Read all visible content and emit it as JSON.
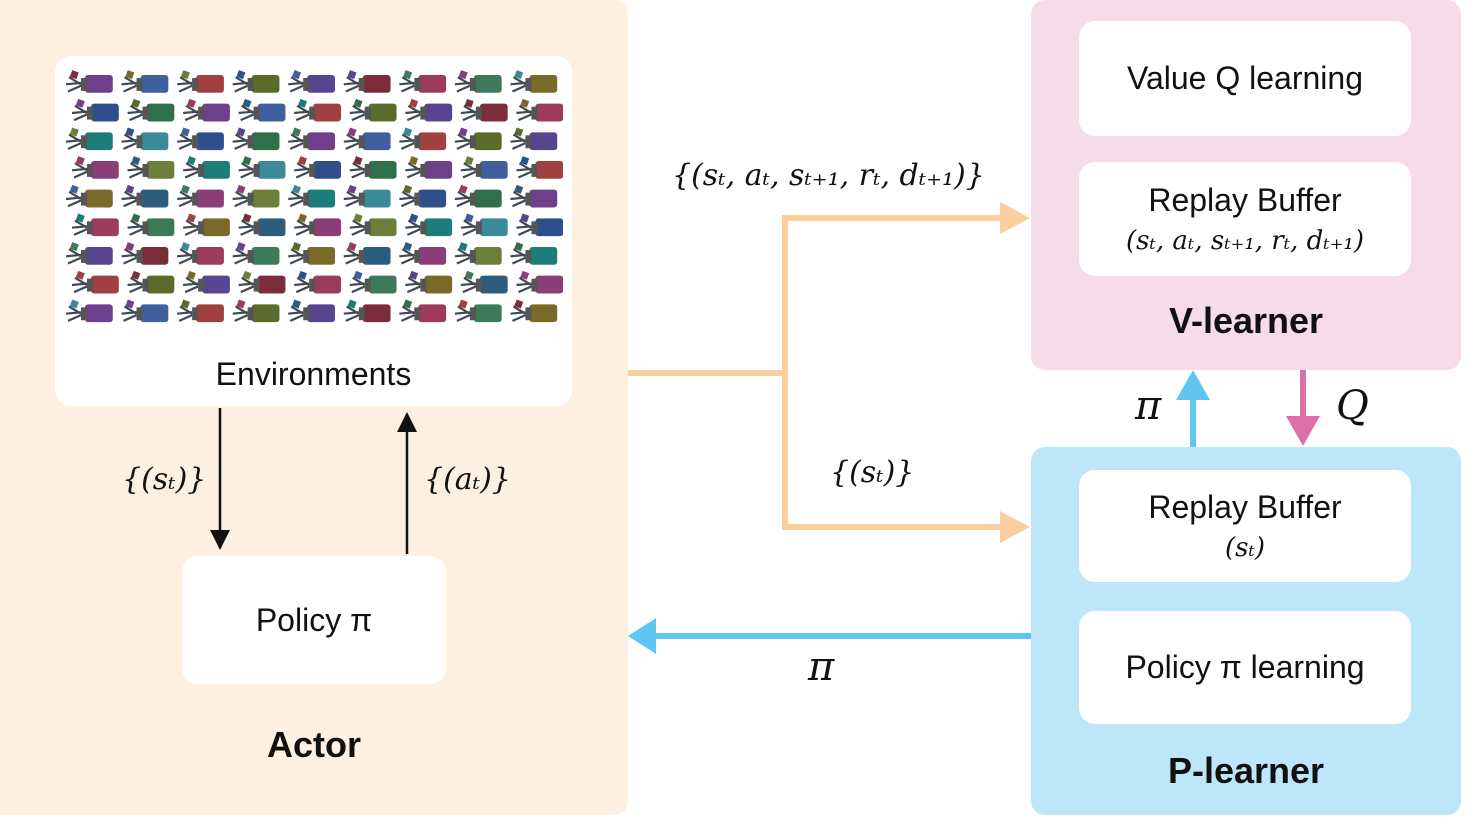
{
  "actor": {
    "title": "Actor",
    "environments_label": "Environments",
    "policy_label": "Policy π",
    "obs_label": "{(sₜ)}",
    "action_label": "{(aₜ)}"
  },
  "v_learner": {
    "title": "V-learner",
    "value_label": "Value Q learning",
    "replay_title": "Replay Buffer",
    "replay_tuple": "(sₜ, aₜ, sₜ₊₁, rₜ, dₜ₊₁)"
  },
  "p_learner": {
    "title": "P-learner",
    "replay_title": "Replay Buffer",
    "replay_tuple": "(sₜ)",
    "policy_label": "Policy π learning"
  },
  "flows": {
    "transitions_label": "{(sₜ, aₜ, sₜ₊₁, rₜ, dₜ₊₁)}",
    "states_label": "{(sₜ)}",
    "policy_to_actor_label": "π",
    "policy_to_v_label": "π",
    "q_to_p_label": "Q"
  },
  "colors": {
    "actor_bg": "#fdf0e0",
    "v_bg": "#f6dbe8",
    "p_bg": "#bde7f8",
    "data_flow": "#f9cf9d",
    "policy_flow": "#5ec6f1",
    "q_flow": "#dd6fa8"
  },
  "env_thumbnail_colors": [
    "#6e3f8a",
    "#3c7a5a",
    "#2e4f8c",
    "#7b2e3a",
    "#1d7d7a",
    "#5a6b2c",
    "#8a3d78",
    "#3f5f9e",
    "#7a6a2a",
    "#2f6f4a",
    "#9c3b5e",
    "#3a8a9a",
    "#58458f",
    "#6b7f3a",
    "#a04040",
    "#2d5d7c"
  ]
}
